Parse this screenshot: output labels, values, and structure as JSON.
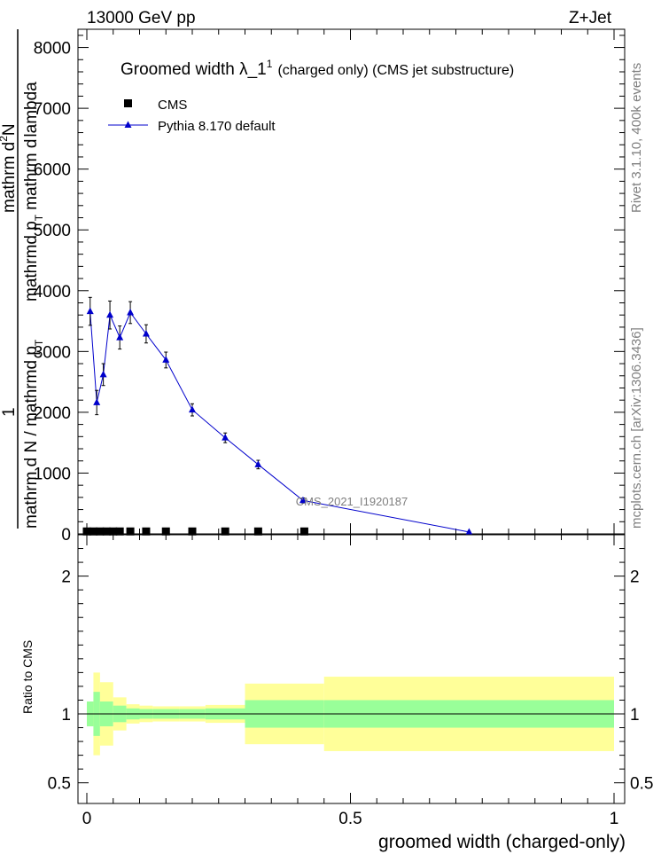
{
  "header": {
    "left": "13000 GeV pp",
    "right": "Z+Jet"
  },
  "side_labels": {
    "rivet": "Rivet 3.1.10,  400k events",
    "mcplots": "mcplots.cern.ch [arXiv:1306.3436]"
  },
  "chart_data": {
    "type": "scatter",
    "title_main": "Groomed width  λ_1",
    "title_sup": "1",
    "title_rest": "(charged only) (CMS jet substructure)",
    "xlabel": "groomed width (charged-only)",
    "ylabel_top": {
      "numerator_left": "1",
      "denominator_left": "mathrm d N / mathrmd p",
      "denominator_sub": "T",
      "numerator_main": "mathrm d",
      "numerator_sup": "2",
      "numerator_rest": "N",
      "denominator_main": "mathrmd p",
      "denominator_main_sub": "T",
      "denominator_rest": "mathrm d",
      "denominator_lambda": "lambda"
    },
    "ylabel_ratio": "Ratio to CMS",
    "watermark": "CMS_2021_I1920187",
    "xlim": [
      0,
      1
    ],
    "ylim_top": [
      0,
      8300
    ],
    "ylim_ratio": [
      0.35,
      2.3
    ],
    "x_ticks": [
      0,
      0.5,
      1
    ],
    "x_tick_labels": [
      "0",
      "0.5",
      "1"
    ],
    "y_ticks_top": [
      0,
      1000,
      2000,
      3000,
      4000,
      5000,
      6000,
      7000,
      8000
    ],
    "y_tick_labels_top": [
      "0",
      "1000",
      "2000",
      "3000",
      "4000",
      "5000",
      "6000",
      "7000",
      "8000"
    ],
    "y_ticks_ratio": [
      0.5,
      1,
      2
    ],
    "y_tick_labels_ratio": [
      "0.5",
      "1",
      "2"
    ],
    "legend": [
      {
        "name": "CMS",
        "marker": "square",
        "color": "#000000"
      },
      {
        "name": "Pythia 8.170 default",
        "marker": "triangle",
        "color": "#0000cc"
      }
    ],
    "series": [
      {
        "name": "CMS",
        "x": [
          0.0,
          0.0125,
          0.025,
          0.0375,
          0.05,
          0.0625,
          0.0825,
          0.1125,
          0.15,
          0.2,
          0.2625,
          0.325,
          0.4125
        ],
        "y": [
          40,
          40,
          40,
          40,
          40,
          40,
          40,
          40,
          40,
          40,
          40,
          40,
          40
        ]
      },
      {
        "name": "Pythia 8.170 default",
        "x": [
          0.0063,
          0.0188,
          0.0313,
          0.0438,
          0.0625,
          0.0825,
          0.1125,
          0.15,
          0.2,
          0.2625,
          0.325,
          0.41,
          0.725
        ],
        "y": [
          3660,
          2160,
          2620,
          3600,
          3230,
          3640,
          3290,
          2860,
          2040,
          1580,
          1140,
          550,
          30
        ],
        "err": [
          230,
          200,
          180,
          230,
          190,
          180,
          150,
          130,
          100,
          80,
          70,
          40,
          10
        ]
      }
    ],
    "ratio_bins": [
      {
        "lo": 0.0,
        "hi": 0.0125,
        "green": 0.09,
        "yellow": 0.09
      },
      {
        "lo": 0.0125,
        "hi": 0.025,
        "green": 0.16,
        "yellow": 0.3
      },
      {
        "lo": 0.025,
        "hi": 0.05,
        "green": 0.09,
        "yellow": 0.23
      },
      {
        "lo": 0.05,
        "hi": 0.075,
        "green": 0.06,
        "yellow": 0.12
      },
      {
        "lo": 0.075,
        "hi": 0.1,
        "green": 0.04,
        "yellow": 0.07
      },
      {
        "lo": 0.1,
        "hi": 0.125,
        "green": 0.035,
        "yellow": 0.06
      },
      {
        "lo": 0.125,
        "hi": 0.175,
        "green": 0.035,
        "yellow": 0.055
      },
      {
        "lo": 0.175,
        "hi": 0.225,
        "green": 0.035,
        "yellow": 0.055
      },
      {
        "lo": 0.225,
        "hi": 0.3,
        "green": 0.04,
        "yellow": 0.065
      },
      {
        "lo": 0.3,
        "hi": 0.45,
        "green": 0.1,
        "yellow": 0.22
      },
      {
        "lo": 0.45,
        "hi": 1.0,
        "green": 0.1,
        "yellow": 0.27
      }
    ],
    "ratio_line": 1,
    "colors": {
      "mc": "#0000cc",
      "data": "#000000",
      "band_inner": "#99ff99",
      "band_outer": "#ffff99",
      "axis": "#000000",
      "watermark": "#7f7f7f"
    }
  }
}
